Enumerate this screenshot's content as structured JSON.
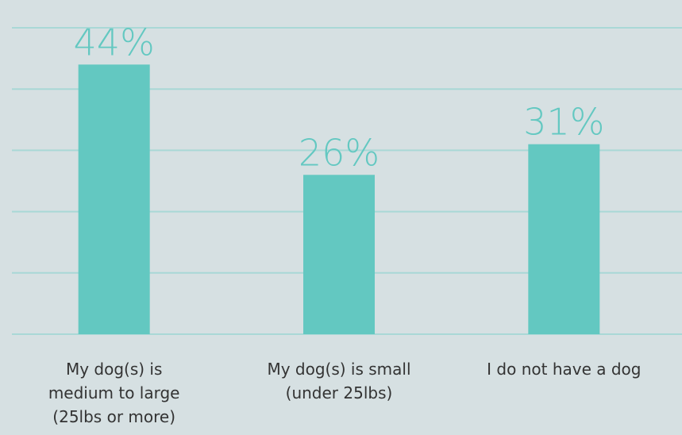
{
  "chart_data": {
    "type": "bar",
    "categories": [
      "My dog(s) is\nmedium to large\n(25lbs or more)",
      "My dog(s) is small\n(under 25lbs)",
      "I do not have a dog"
    ],
    "values": [
      44,
      26,
      31
    ],
    "value_labels": [
      "44%",
      "26%",
      "31%"
    ],
    "color": "#63c8c1",
    "ylim": [
      0,
      50
    ],
    "yticks": [
      0,
      10,
      20,
      30,
      40,
      50
    ],
    "grid": true
  }
}
